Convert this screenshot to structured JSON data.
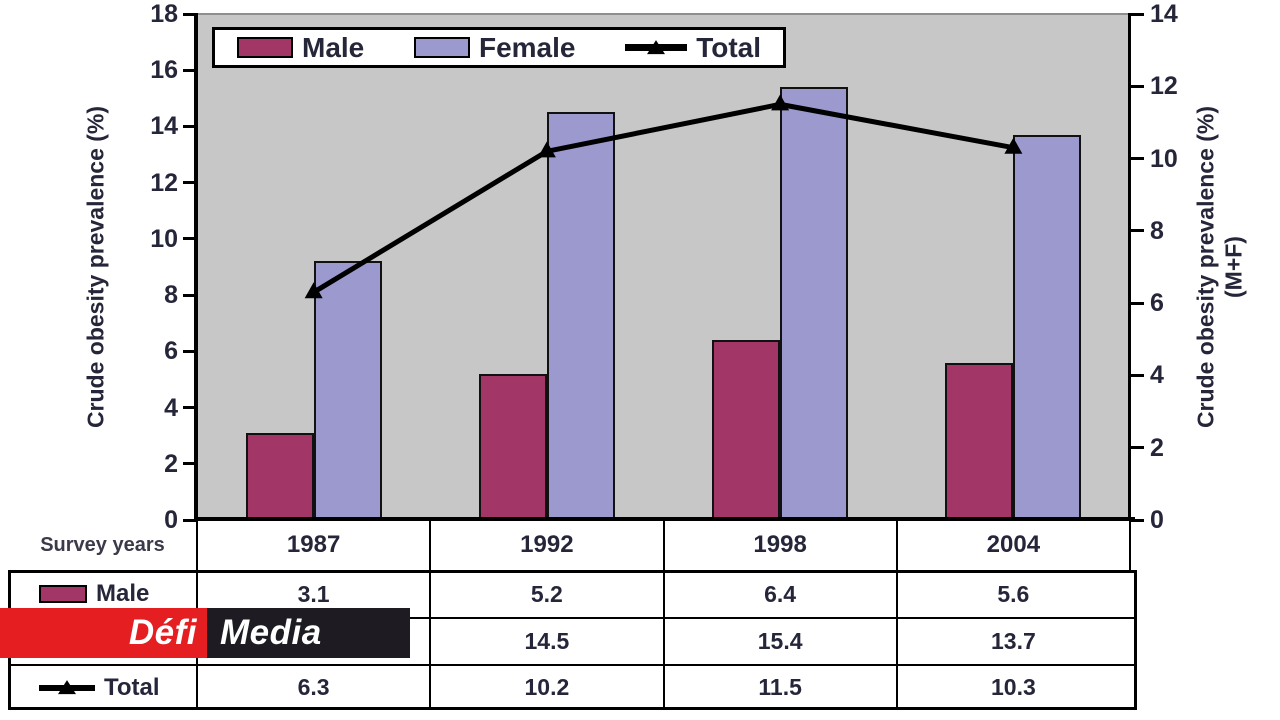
{
  "chart_data": {
    "type": "bar",
    "subtype": "grouped-bars-with-line-overlay",
    "categories": [
      "1987",
      "1992",
      "1998",
      "2004"
    ],
    "series": [
      {
        "name": "Male",
        "type": "bar",
        "axis": "left",
        "color": "#a23767",
        "values": [
          3.1,
          5.2,
          6.4,
          5.6
        ]
      },
      {
        "name": "Female",
        "type": "bar",
        "axis": "left",
        "color": "#9b99ce",
        "values": [
          9.2,
          14.5,
          15.4,
          13.7
        ]
      },
      {
        "name": "Total",
        "type": "line",
        "axis": "right",
        "color": "#000000",
        "values": [
          6.3,
          10.2,
          11.5,
          10.3
        ]
      }
    ],
    "left_axis": {
      "label": "Crude obesity prevalence (%)",
      "min": 0,
      "max": 18,
      "step": 2
    },
    "right_axis": {
      "label": "Crude obesity prevalence (%)",
      "label2": "(M+F)",
      "min": 0,
      "max": 14,
      "step": 2
    },
    "x_axis_label": "Survey years",
    "legend_position": "top",
    "grid": false,
    "plot_background": "#c7c7c7"
  },
  "legend": {
    "items": [
      {
        "label": "Male",
        "marker": "bar-swatch",
        "color": "#a23767"
      },
      {
        "label": "Female",
        "marker": "bar-swatch",
        "color": "#9b99ce"
      },
      {
        "label": "Total",
        "marker": "line-marker",
        "color": "#000000"
      }
    ]
  },
  "table": {
    "corner_label": "Survey years",
    "columns": [
      "1987",
      "1992",
      "1998",
      "2004"
    ],
    "rows": [
      {
        "label": "Male",
        "marker": "bar-swatch",
        "color": "#a23767",
        "values": [
          "3.1",
          "5.2",
          "6.4",
          "5.6"
        ]
      },
      {
        "label": "",
        "marker": "none",
        "color": "",
        "values": [
          "",
          "14.5",
          "15.4",
          "13.7"
        ]
      },
      {
        "label": "Total",
        "marker": "line-marker",
        "color": "#000000",
        "values": [
          "6.3",
          "10.2",
          "11.5",
          "10.3"
        ]
      }
    ]
  },
  "branding": {
    "defi_text": "Défi",
    "media_text": "Media",
    "red": "#e41e21",
    "dark": "#1e1c22"
  }
}
